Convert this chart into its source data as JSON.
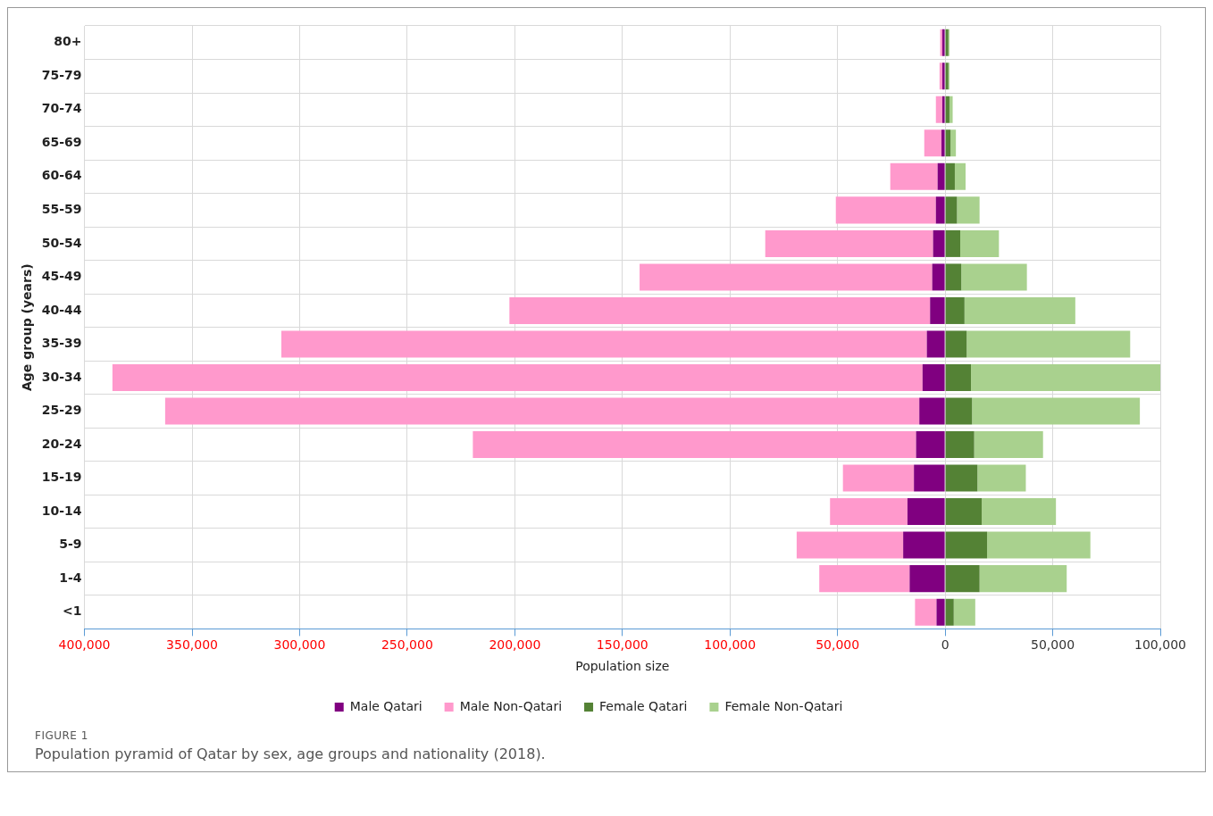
{
  "chart_data": {
    "type": "bar",
    "orientation": "horizontal",
    "stacked": true,
    "xlabel": "Population size",
    "ylabel": "Age group (years)",
    "categories": [
      "80+",
      "75-79",
      "70-74",
      "65-69",
      "60-64",
      "55-59",
      "50-54",
      "45-49",
      "40-44",
      "35-39",
      "30-34",
      "25-29",
      "20-24",
      "15-19",
      "10-14",
      "5-9",
      "1-4",
      "<1"
    ],
    "series": [
      {
        "name": "Male Qatari",
        "color": "#800080",
        "values": [
          -1300,
          -1300,
          -1300,
          -1700,
          -3500,
          -4300,
          -5600,
          -6000,
          -7000,
          -8500,
          -10500,
          -12000,
          -13500,
          -14500,
          -17500,
          -19500,
          -16500,
          -4000
        ]
      },
      {
        "name": "Male Non-Qatari",
        "color": "#ff99cc",
        "values": [
          -1000,
          -1300,
          -3000,
          -8000,
          -22000,
          -46500,
          -78000,
          -136000,
          -195500,
          -300000,
          -376500,
          -350500,
          -206000,
          -33000,
          -36000,
          -49500,
          -42000,
          -10000
        ]
      },
      {
        "name": "Female Qatari",
        "color": "#548235",
        "values": [
          1500,
          1500,
          2000,
          2500,
          4500,
          5500,
          7000,
          7500,
          9000,
          10000,
          12000,
          12500,
          13500,
          15000,
          17000,
          19500,
          16000,
          4000
        ]
      },
      {
        "name": "Female Non-Qatari",
        "color": "#a9d18e",
        "values": [
          500,
          500,
          1500,
          2500,
          5000,
          10500,
          18000,
          30500,
          51500,
          76000,
          88000,
          78000,
          32000,
          22500,
          34500,
          48000,
          40500,
          10000
        ]
      }
    ],
    "xlim": [
      -400000,
      100000
    ],
    "xticks": [
      {
        "value": -400000,
        "label": "400,000"
      },
      {
        "value": -350000,
        "label": "350,000"
      },
      {
        "value": -300000,
        "label": "300,000"
      },
      {
        "value": -250000,
        "label": "250,000"
      },
      {
        "value": -200000,
        "label": "200,000"
      },
      {
        "value": -150000,
        "label": "150,000"
      },
      {
        "value": -100000,
        "label": "100,000"
      },
      {
        "value": -50000,
        "label": "50,000"
      },
      0,
      {
        "value": 50000,
        "label": "50,000"
      },
      {
        "value": 100000,
        "label": "100,000"
      }
    ],
    "grid": true,
    "legend": "bottom",
    "annotations": [
      "FIGURE 1",
      "Population pyramid of Qatar by sex, age groups and nationality (2018)."
    ]
  }
}
